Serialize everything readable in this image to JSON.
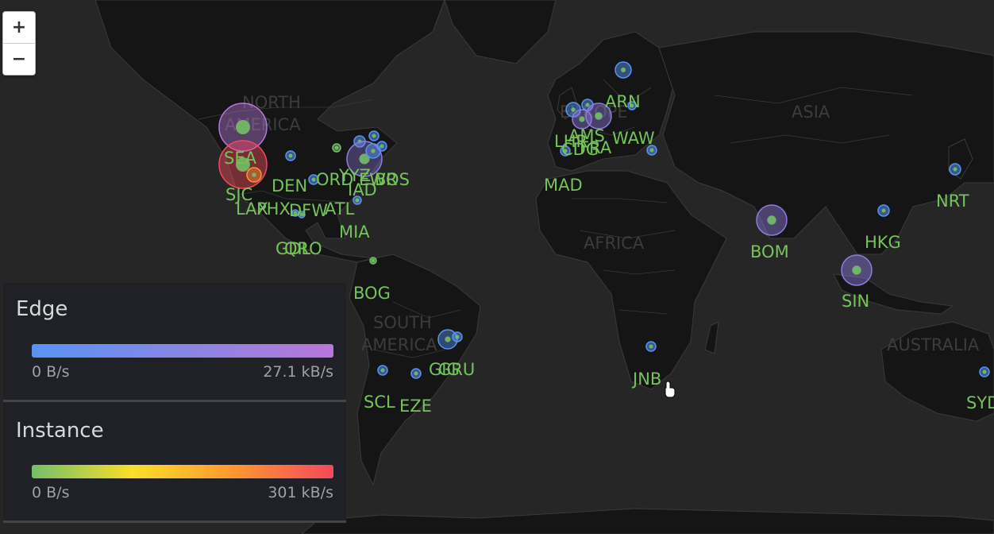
{
  "map": {
    "region_labels": [
      "NORTH",
      "AMERICA",
      "SOUTH",
      "AMERICA",
      "AFRICA",
      "EUROPE",
      "ASIA",
      "AUSTRALIA"
    ],
    "colors": {
      "land": "#151515",
      "ocean": "#262626",
      "border": "#3a3a3a",
      "region_label": "#3c3c3c",
      "site_label": "#75c45a"
    },
    "sites": [
      {
        "code": "SEA",
        "kind": "edge",
        "rate": "high"
      },
      {
        "code": "SJC",
        "kind": "instance",
        "rate": "high"
      },
      {
        "code": "LAX"
      },
      {
        "code": "PHX"
      },
      {
        "code": "DFW"
      },
      {
        "code": "ATL"
      },
      {
        "code": "DEN"
      },
      {
        "code": "ORD"
      },
      {
        "code": "YYZ"
      },
      {
        "code": "IAD"
      },
      {
        "code": "EWR"
      },
      {
        "code": "BOS"
      },
      {
        "code": "MIA"
      },
      {
        "code": "GDL"
      },
      {
        "code": "QRO"
      },
      {
        "code": "BOG"
      },
      {
        "code": "SCL"
      },
      {
        "code": "EZE"
      },
      {
        "code": "GIG"
      },
      {
        "code": "GRU"
      },
      {
        "code": "MAD"
      },
      {
        "code": "LHR"
      },
      {
        "code": "CDG"
      },
      {
        "code": "AMS"
      },
      {
        "code": "FRA"
      },
      {
        "code": "WAW"
      },
      {
        "code": "ARN"
      },
      {
        "code": "JNB"
      },
      {
        "code": "BOM"
      },
      {
        "code": "SIN"
      },
      {
        "code": "HKG"
      },
      {
        "code": "NRT"
      },
      {
        "code": "SYD"
      }
    ]
  },
  "zoom": {
    "in_label": "+",
    "out_label": "−"
  },
  "legend": {
    "edge": {
      "title": "Edge",
      "min": "0 B/s",
      "max": "27.1 kB/s",
      "gradient": [
        "#5794f2",
        "#b877d9"
      ]
    },
    "instance": {
      "title": "Instance",
      "min": "0 B/s",
      "max": "301 kB/s",
      "gradient": [
        "#73bf69",
        "#fade2a",
        "#ff9830",
        "#f2495c"
      ]
    }
  }
}
